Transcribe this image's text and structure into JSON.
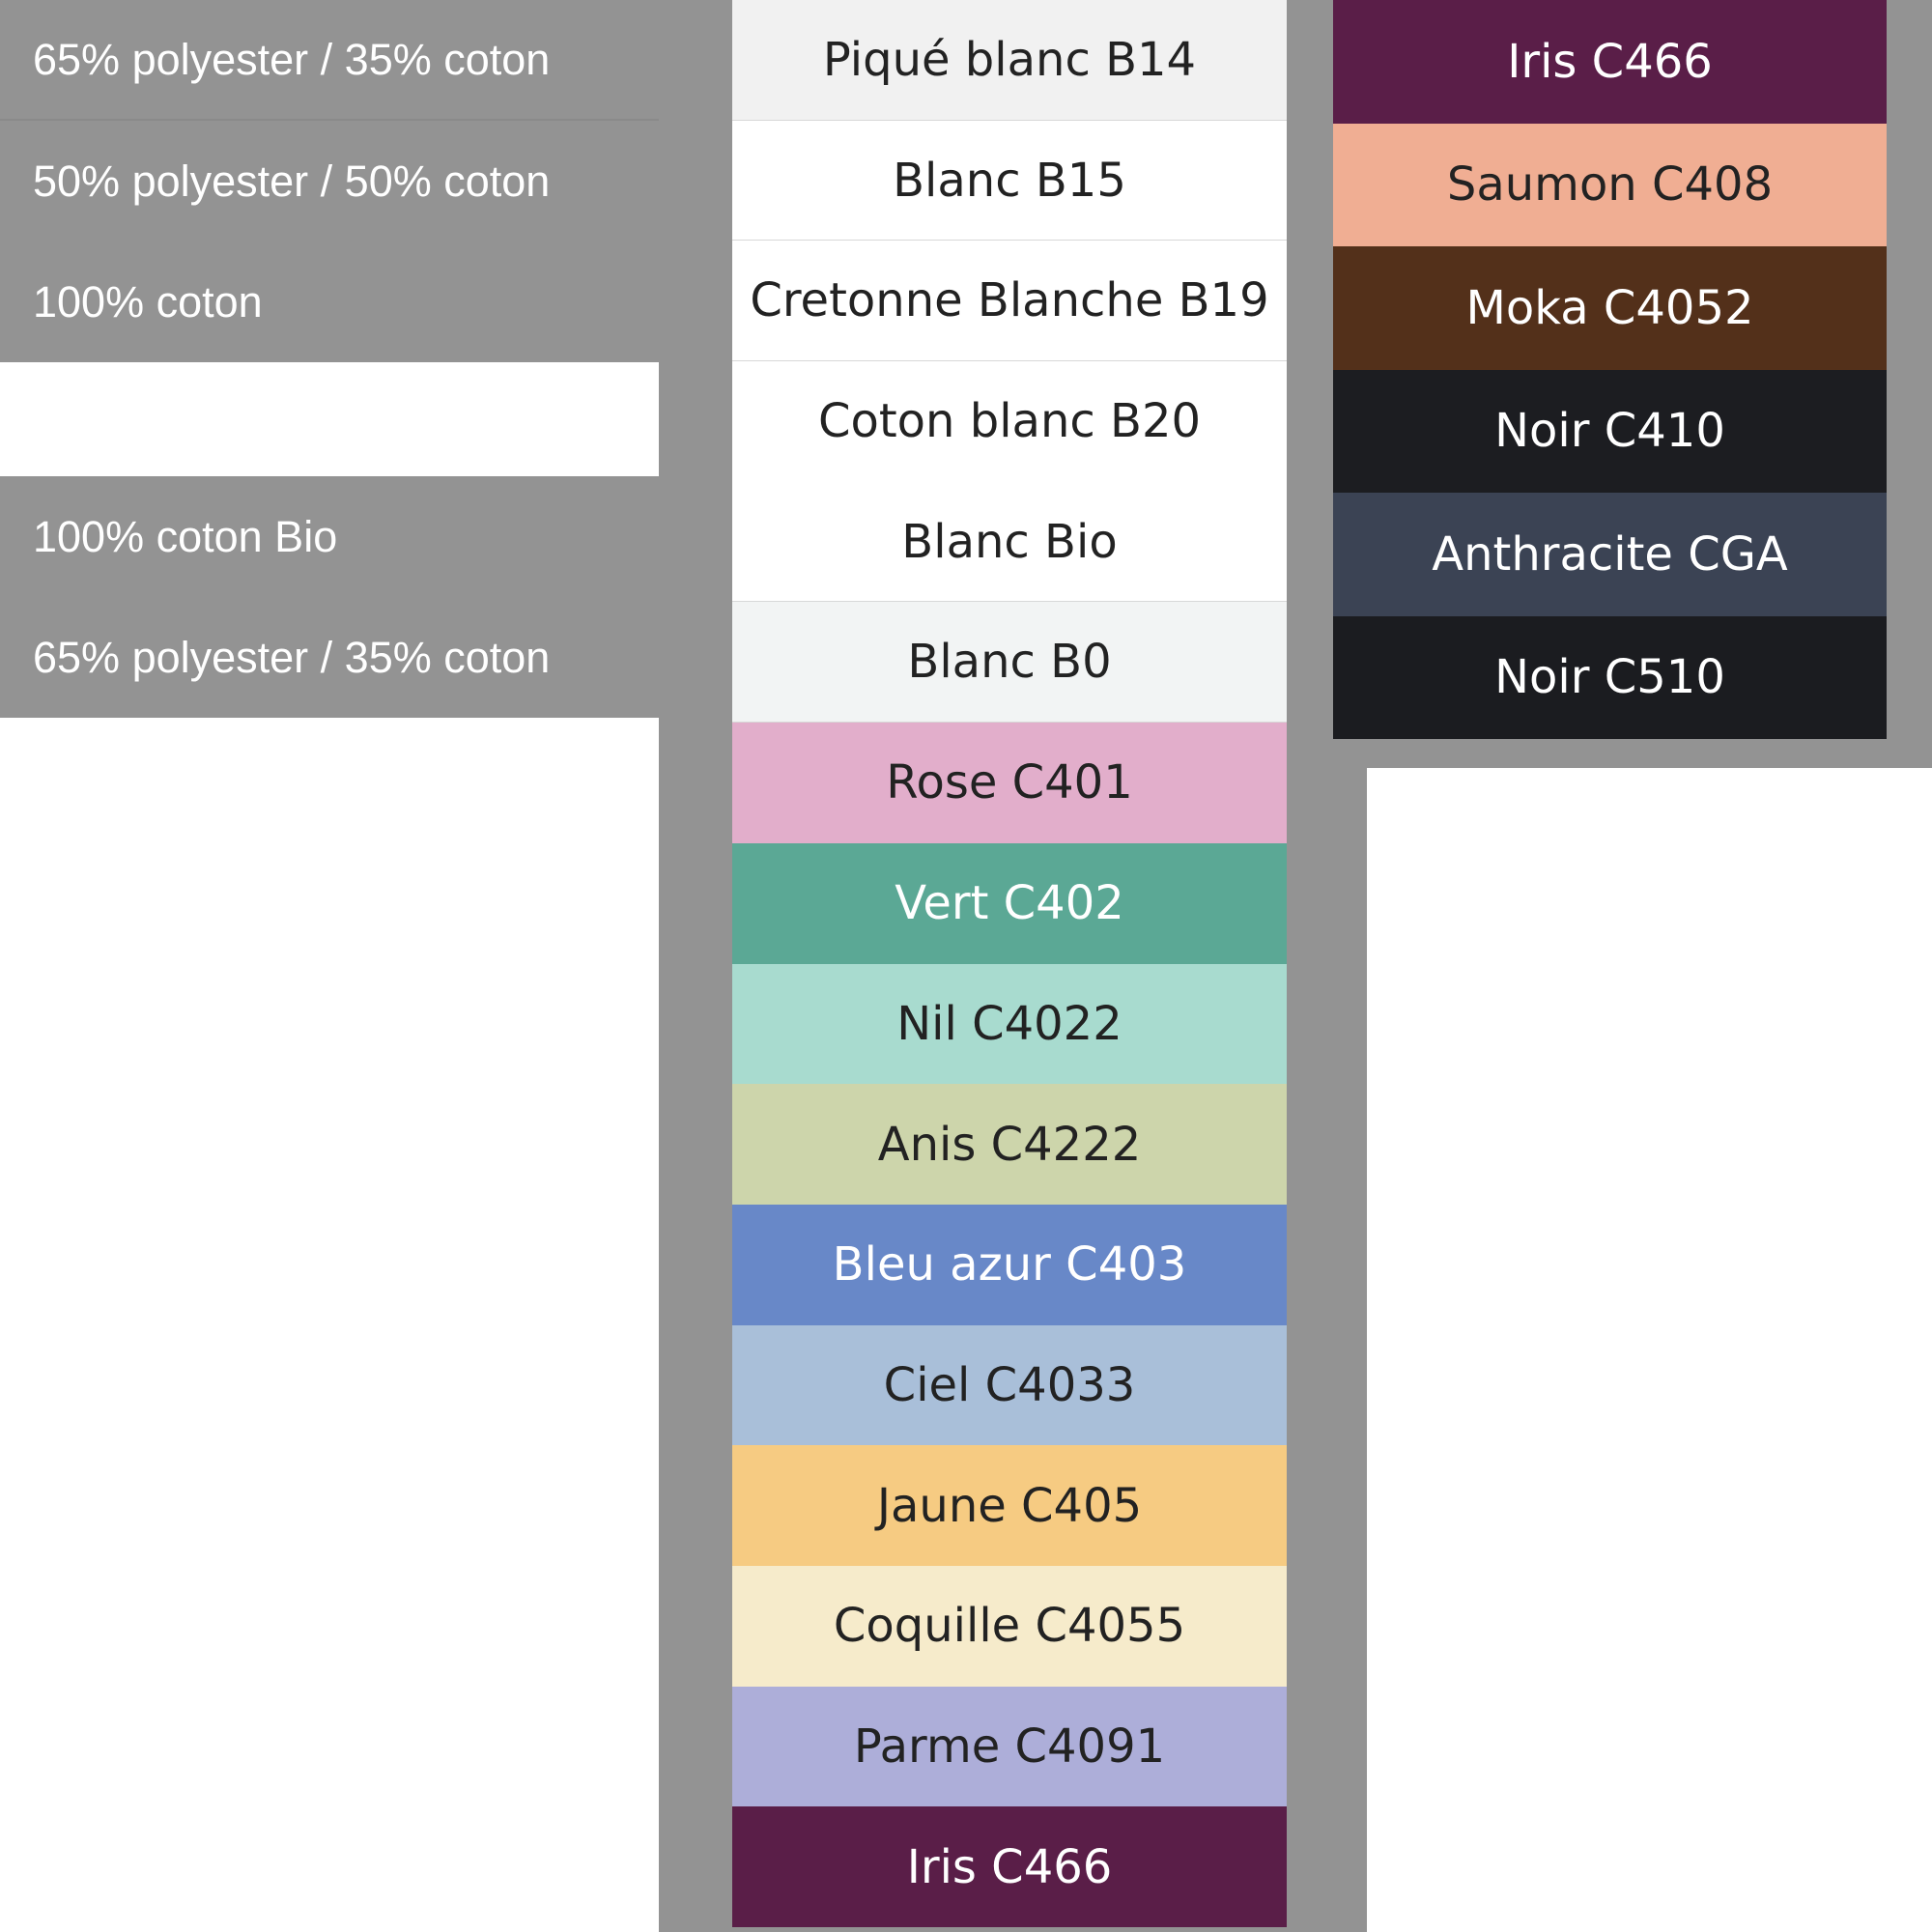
{
  "fabrics": [
    {
      "label": "65% polyester / 35% coton"
    },
    {
      "label": "50% polyester / 50% coton"
    },
    {
      "label": "100% coton"
    },
    {
      "label": ""
    },
    {
      "label": "100% coton Bio"
    },
    {
      "label": "65% polyester / 35% coton"
    }
  ],
  "colors_main": [
    {
      "name": "Piqué blanc B14",
      "bg": "#f1f1f1",
      "fg": "#222222"
    },
    {
      "name": "Blanc B15",
      "bg": "#ffffff",
      "fg": "#222222"
    },
    {
      "name": "Cretonne Blanche B19",
      "bg": "#ffffff",
      "fg": "#222222"
    },
    {
      "name": "Coton blanc B20",
      "bg": "#ffffff",
      "fg": "#222222"
    },
    {
      "name": "Blanc Bio",
      "bg": "#ffffff",
      "fg": "#222222"
    },
    {
      "name": "Blanc B0",
      "bg": "#f2f4f4",
      "fg": "#222222"
    },
    {
      "name": "Rose C401",
      "bg": "#e2aecb",
      "fg": "#222222"
    },
    {
      "name": "Vert C402",
      "bg": "#5ba895",
      "fg": "#ffffff"
    },
    {
      "name": "Nil C4022",
      "bg": "#a8dbcf",
      "fg": "#222222"
    },
    {
      "name": "Anis C4222",
      "bg": "#cdd5ab",
      "fg": "#222222"
    },
    {
      "name": "Bleu azur C403",
      "bg": "#6888c8",
      "fg": "#ffffff"
    },
    {
      "name": "Ciel C4033",
      "bg": "#a9bfd9",
      "fg": "#222222"
    },
    {
      "name": "Jaune C405",
      "bg": "#f6cb82",
      "fg": "#222222"
    },
    {
      "name": "Coquille C4055",
      "bg": "#f6ebcb",
      "fg": "#222222"
    },
    {
      "name": "Parme C4091",
      "bg": "#adaed9",
      "fg": "#222222"
    },
    {
      "name": "Iris C466",
      "bg": "#5a1e48",
      "fg": "#ffffff"
    }
  ],
  "colors_side": [
    {
      "name": "Iris C466",
      "bg": "#5a1e48",
      "fg": "#ffffff"
    },
    {
      "name": "Saumon C408",
      "bg": "#f0ae93",
      "fg": "#222222"
    },
    {
      "name": "Moka C4052",
      "bg": "#53301a",
      "fg": "#ffffff"
    },
    {
      "name": "Noir C410",
      "bg": "#1c1d21",
      "fg": "#ffffff"
    },
    {
      "name": "Anthracite CGA",
      "bg": "#3b4354",
      "fg": "#ffffff"
    },
    {
      "name": "Noir C510",
      "bg": "#1b1c20",
      "fg": "#ffffff"
    }
  ]
}
